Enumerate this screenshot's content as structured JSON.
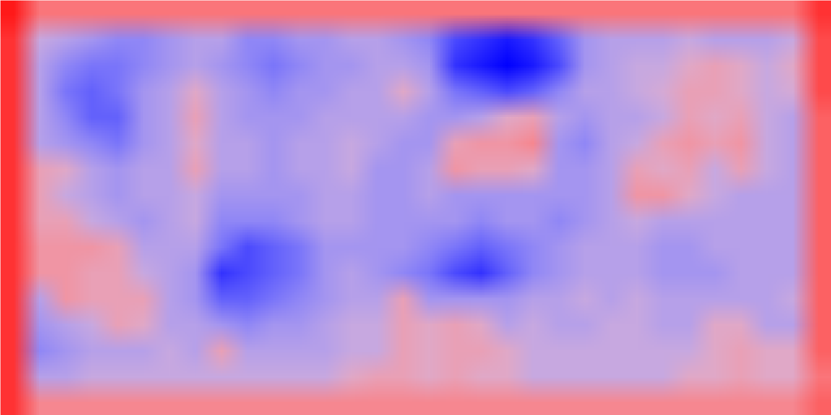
{
  "chart_data": {
    "type": "heatmap",
    "tick_labels": false,
    "colors": [
      "#0000ff",
      "#ffffff",
      "#ff0000"
    ],
    "color_range": [
      -1,
      1
    ],
    "cells": [
      [
        0.9,
        0.5,
        0.5,
        0.5,
        0.5,
        0.5,
        0.5,
        0.5,
        0.5,
        0.5,
        0.5,
        0.5,
        0.5,
        0.5,
        0.5,
        0.5,
        0.5,
        0.5,
        0.5,
        0.5,
        0.5,
        0.5,
        0.5,
        0.5,
        0.5,
        0.5,
        0.5,
        0.5,
        0.5,
        0.5,
        0.5,
        0.8
      ],
      [
        0.8,
        -0.1,
        -0.2,
        -0.3,
        -0.4,
        -0.4,
        -0.3,
        -0.2,
        -0.2,
        -0.4,
        -0.4,
        -0.3,
        -0.3,
        -0.2,
        -0.2,
        -0.3,
        -0.4,
        -0.7,
        -0.8,
        -0.9,
        -0.8,
        -0.6,
        -0.3,
        -0.2,
        -0.2,
        -0.2,
        -0.1,
        -0.2,
        -0.2,
        -0.2,
        -0.1,
        0.7
      ],
      [
        0.8,
        -0.2,
        -0.4,
        -0.5,
        -0.5,
        -0.4,
        -0.3,
        -0.2,
        -0.3,
        -0.4,
        -0.5,
        -0.4,
        -0.3,
        -0.3,
        -0.2,
        -0.2,
        -0.3,
        -0.8,
        -0.9,
        -1.0,
        -0.9,
        -0.7,
        -0.3,
        -0.2,
        -0.1,
        -0.1,
        0.1,
        0.2,
        0.1,
        -0.1,
        0.1,
        0.7
      ],
      [
        0.8,
        -0.2,
        -0.5,
        -0.6,
        -0.5,
        -0.3,
        -0.2,
        0.1,
        -0.2,
        -0.3,
        -0.4,
        -0.3,
        -0.3,
        -0.2,
        -0.2,
        0.1,
        -0.2,
        -0.5,
        -0.6,
        -0.7,
        -0.6,
        -0.4,
        -0.2,
        -0.2,
        -0.1,
        0,
        0.2,
        0.2,
        0.1,
        -0.1,
        0,
        0.7
      ],
      [
        0.8,
        -0.2,
        -0.4,
        -0.6,
        -0.6,
        -0.3,
        -0.2,
        0.2,
        -0.2,
        -0.3,
        -0.3,
        -0.3,
        -0.2,
        -0.2,
        -0.2,
        -0.2,
        -0.3,
        -0.3,
        -0.2,
        0.1,
        0.2,
        -0.2,
        -0.3,
        -0.2,
        -0.2,
        -0.1,
        0.2,
        0.1,
        0.2,
        -0.1,
        -0.2,
        0.6
      ],
      [
        0.8,
        -0.2,
        -0.3,
        -0.4,
        -0.5,
        -0.3,
        -0.2,
        0.1,
        -0.2,
        -0.2,
        -0.3,
        -0.2,
        -0.2,
        -0.1,
        -0.2,
        -0.3,
        -0.3,
        0.2,
        0.3,
        0.3,
        0.4,
        -0.3,
        -0.4,
        -0.2,
        -0.1,
        0.2,
        0.3,
        0.2,
        0.3,
        -0.1,
        -0.2,
        0.6
      ],
      [
        0.8,
        0.2,
        0.1,
        -0.2,
        -0.3,
        -0.2,
        -0.2,
        0.2,
        -0.2,
        -0.2,
        -0.3,
        -0.2,
        -0.2,
        -0.1,
        -0.3,
        -0.3,
        -0.2,
        0.3,
        0.2,
        0.2,
        0.1,
        -0.3,
        -0.3,
        -0.2,
        0.2,
        0.1,
        0.2,
        -0.1,
        0.2,
        -0.1,
        -0.2,
        0.6
      ],
      [
        0.8,
        0.2,
        -0.1,
        -0.2,
        -0.3,
        -0.2,
        -0.2,
        -0.1,
        -0.3,
        -0.3,
        -0.3,
        -0.3,
        -0.2,
        -0.2,
        -0.3,
        -0.3,
        -0.2,
        -0.3,
        -0.3,
        -0.3,
        -0.3,
        -0.3,
        -0.3,
        -0.2,
        0.3,
        0.3,
        0.1,
        -0.1,
        -0.2,
        -0.2,
        -0.2,
        0.6
      ],
      [
        0.8,
        0.2,
        0.2,
        -0.1,
        -0.2,
        -0.3,
        -0.2,
        -0.1,
        -0.4,
        -0.4,
        -0.4,
        -0.3,
        -0.2,
        -0.2,
        -0.3,
        -0.3,
        -0.3,
        -0.3,
        -0.4,
        -0.3,
        -0.3,
        -0.4,
        -0.3,
        -0.2,
        -0.1,
        -0.2,
        -0.2,
        -0.2,
        -0.2,
        -0.2,
        -0.2,
        0.6
      ],
      [
        0.8,
        0.3,
        0.3,
        0.3,
        0.2,
        -0.2,
        -0.2,
        -0.2,
        -0.5,
        -0.7,
        -0.6,
        -0.5,
        -0.3,
        -0.3,
        -0.3,
        -0.3,
        -0.4,
        -0.5,
        -0.6,
        -0.5,
        -0.4,
        -0.3,
        -0.2,
        -0.2,
        -0.2,
        -0.3,
        -0.3,
        -0.2,
        -0.2,
        -0.2,
        -0.2,
        0.6
      ],
      [
        0.8,
        0.3,
        0.3,
        0.2,
        0.2,
        -0.1,
        -0.2,
        -0.3,
        -0.8,
        -0.7,
        -0.6,
        -0.5,
        -0.3,
        -0.2,
        -0.3,
        -0.4,
        -0.5,
        -0.7,
        -0.8,
        -0.6,
        -0.4,
        -0.3,
        -0.2,
        -0.2,
        -0.2,
        -0.3,
        -0.3,
        -0.3,
        -0.2,
        -0.2,
        -0.2,
        0.6
      ],
      [
        0.8,
        -0.2,
        0.3,
        0.2,
        0.2,
        0.2,
        -0.2,
        -0.3,
        -0.6,
        -0.6,
        -0.5,
        -0.4,
        -0.3,
        -0.2,
        -0.2,
        0.2,
        -0.3,
        -0.3,
        -0.3,
        -0.3,
        -0.2,
        -0.2,
        -0.1,
        -0.2,
        -0.1,
        -0.2,
        -0.2,
        -0.2,
        -0.2,
        -0.2,
        -0.1,
        0.6
      ],
      [
        0.8,
        -0.3,
        -0.2,
        -0.1,
        0.2,
        0.1,
        -0.2,
        -0.2,
        -0.3,
        -0.4,
        -0.3,
        -0.3,
        -0.2,
        -0.1,
        -0.1,
        0.2,
        0.1,
        0.2,
        0.1,
        -0.2,
        -0.1,
        -0.2,
        -0.2,
        -0.1,
        -0.1,
        -0.2,
        -0.2,
        0.1,
        0.1,
        -0.2,
        -0.2,
        0.6
      ],
      [
        0.8,
        -0.4,
        -0.3,
        -0.2,
        -0.2,
        -0.2,
        -0.1,
        -0.2,
        0.2,
        -0.2,
        -0.2,
        -0.2,
        -0.2,
        -0.1,
        -0.1,
        0.2,
        0.1,
        0.2,
        0.2,
        0.1,
        -0.1,
        -0.1,
        -0.1,
        -0.1,
        -0.1,
        -0.1,
        -0.1,
        0.1,
        0.2,
        0.1,
        0.1,
        0.6
      ],
      [
        0.8,
        -0.2,
        -0.2,
        -0.1,
        -0.1,
        -0.1,
        -0.1,
        -0.1,
        -0.1,
        -0.1,
        -0.1,
        -0.1,
        -0.1,
        0.1,
        0.2,
        0.2,
        0.1,
        0.2,
        0.1,
        0.1,
        -0.1,
        -0.1,
        -0.1,
        -0.1,
        -0.1,
        -0.1,
        0.1,
        0.1,
        0.2,
        0.1,
        0.1,
        0.5
      ],
      [
        0.8,
        0.4,
        0.4,
        0.4,
        0.4,
        0.4,
        0.4,
        0.4,
        0.4,
        0.4,
        0.4,
        0.4,
        0.4,
        0.4,
        0.4,
        0.4,
        0.4,
        0.4,
        0.4,
        0.4,
        0.4,
        0.4,
        0.4,
        0.4,
        0.4,
        0.4,
        0.4,
        0.4,
        0.4,
        0.4,
        0.4,
        0.6
      ]
    ]
  }
}
